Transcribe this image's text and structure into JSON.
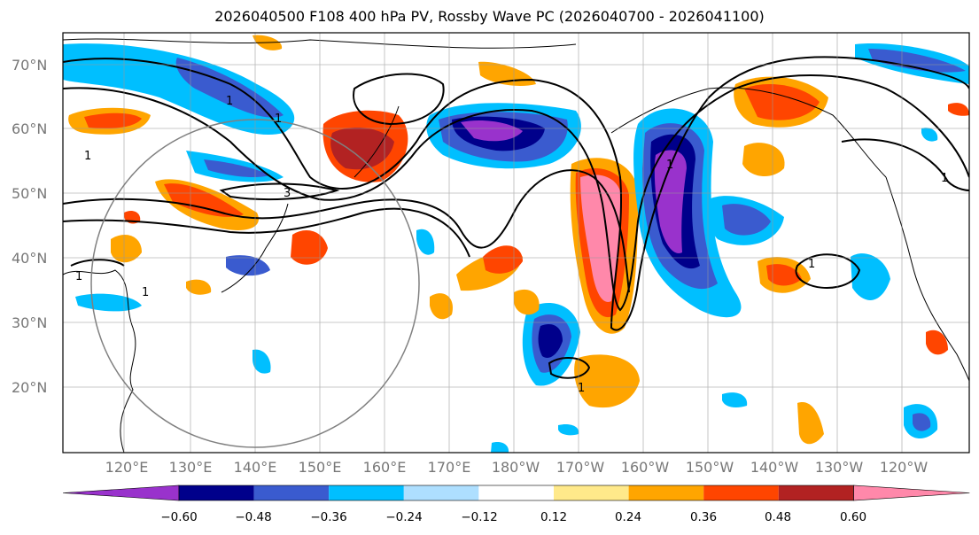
{
  "title": "2026040500 F108 400 hPa PV, Rossby Wave PC (2026040700 - 2026041100)",
  "map": {
    "latitude_labels": [
      "70°N",
      "60°N",
      "50°N",
      "40°N",
      "30°N",
      "20°N"
    ],
    "longitude_labels": [
      "120°E",
      "130°E",
      "140°E",
      "150°E",
      "160°E",
      "170°E",
      "180°W",
      "170°W",
      "160°W",
      "150°W",
      "140°W",
      "130°W",
      "120°W"
    ],
    "contour_labels": [
      "1",
      "1",
      "1",
      "1",
      "3",
      "1",
      "1",
      "1",
      "1",
      "1"
    ]
  },
  "colorbar": {
    "colors": [
      "#9932cc",
      "#00008b",
      "#3a5bcf",
      "#00bfff",
      "#aedfff",
      "#ffffff",
      "#ffe98a",
      "#ffa500",
      "#ff4500",
      "#b22222",
      "#ff88aa"
    ],
    "tick_labels": [
      "−0.60",
      "−0.48",
      "−0.36",
      "−0.24",
      "−0.12",
      "0.12",
      "0.24",
      "0.36",
      "0.48",
      "0.60"
    ]
  }
}
